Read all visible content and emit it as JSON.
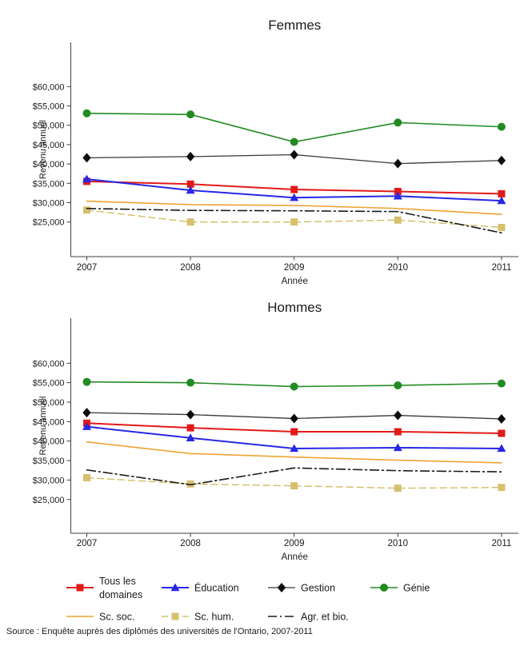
{
  "source_note": "Source : Enquête auprès des diplômés des universités de l'Ontario, 2007-2011",
  "chart_data": [
    {
      "type": "line",
      "title": "Femmes",
      "xlabel": "Année",
      "ylabel": "Revenu annuel",
      "x": [
        2007,
        2008,
        2009,
        2010,
        2011
      ],
      "ylim": [
        16000,
        71400
      ],
      "grid": false,
      "legend_position": "below-both-charts",
      "yticks": [
        25000,
        30000,
        35000,
        40000,
        45000,
        50000,
        55000,
        60000
      ],
      "ytick_labels": [
        "$25,000",
        "$30,000",
        "$35,000",
        "$40,000",
        "$45,000",
        "$50,000",
        "$55,000",
        "$60,000"
      ],
      "series": [
        {
          "name": "Tous les domaines",
          "color": "#e31a1a",
          "marker": "square",
          "dash": null,
          "width": 2,
          "values": [
            35500,
            34800,
            33400,
            32900,
            32300
          ]
        },
        {
          "name": "Éducation",
          "color": "#2727e6",
          "marker": "triangle",
          "dash": null,
          "width": 2,
          "values": [
            36100,
            33200,
            31300,
            31700,
            30500
          ]
        },
        {
          "name": "Gestion",
          "color": "#383838",
          "marker_color": "#0d0d0d",
          "marker": "diamond",
          "dash": null,
          "width": 1.3,
          "values": [
            41600,
            41900,
            42400,
            40100,
            40900
          ]
        },
        {
          "name": "Génie",
          "color": "#228b22",
          "marker": "circle",
          "dash": null,
          "width": 1.6,
          "values": [
            53100,
            52800,
            45700,
            50700,
            49600
          ]
        },
        {
          "name": "Sc. soc.",
          "color": "#f0a335",
          "marker": "none",
          "dash": null,
          "width": 1.6,
          "values": [
            30400,
            29500,
            29300,
            28500,
            27000
          ]
        },
        {
          "name": "Sc. hum.",
          "color": "#d6c06e",
          "marker": "square",
          "dash": "8,5",
          "width": 1.5,
          "values": [
            28100,
            25000,
            25000,
            25500,
            23600
          ]
        },
        {
          "name": "Agr. et bio.",
          "color": "#1a1a1a",
          "marker": "none",
          "dash": "11,4,2,4",
          "width": 1.6,
          "values": [
            28500,
            28000,
            27900,
            27700,
            22200
          ]
        }
      ]
    },
    {
      "type": "line",
      "title": "Hommes",
      "xlabel": "Année",
      "ylabel": "Revenu annuel",
      "x": [
        2007,
        2008,
        2009,
        2010,
        2011
      ],
      "ylim": [
        16300,
        71200
      ],
      "grid": false,
      "yticks": [
        25000,
        30000,
        35000,
        40000,
        45000,
        50000,
        55000,
        60000
      ],
      "ytick_labels": [
        "$25,000",
        "$30,000",
        "$35,000",
        "$40,000",
        "$45,000",
        "$50,000",
        "$55,000",
        "$60,000"
      ],
      "series": [
        {
          "name": "Tous les domaines",
          "color": "#e31a1a",
          "marker": "square",
          "dash": null,
          "width": 2,
          "values": [
            44600,
            43400,
            42400,
            42400,
            42000
          ]
        },
        {
          "name": "Éducation",
          "color": "#2727e6",
          "marker": "triangle",
          "dash": null,
          "width": 2,
          "values": [
            43700,
            40800,
            38100,
            38300,
            38100
          ]
        },
        {
          "name": "Gestion",
          "color": "#383838",
          "marker_color": "#0d0d0d",
          "marker": "diamond",
          "dash": null,
          "width": 1.3,
          "values": [
            47300,
            46800,
            45800,
            46600,
            45700
          ]
        },
        {
          "name": "Génie",
          "color": "#228b22",
          "marker": "circle",
          "dash": null,
          "width": 1.6,
          "values": [
            55200,
            55000,
            54000,
            54300,
            54800
          ]
        },
        {
          "name": "Sc. soc.",
          "color": "#f0a335",
          "marker": "none",
          "dash": null,
          "width": 1.6,
          "values": [
            39800,
            36800,
            35900,
            35100,
            34400
          ]
        },
        {
          "name": "Sc. hum.",
          "color": "#d6c06e",
          "marker": "square",
          "dash": "8,5",
          "width": 1.5,
          "values": [
            30600,
            29000,
            28500,
            27900,
            28100
          ]
        },
        {
          "name": "Agr. et bio.",
          "color": "#1a1a1a",
          "marker": "none",
          "dash": "11,4,2,4",
          "width": 1.6,
          "values": [
            32600,
            28800,
            33100,
            32400,
            32100
          ]
        }
      ]
    }
  ],
  "legend": {
    "rows": [
      [
        "Tous les domaines",
        "Éducation",
        "Gestion",
        "Génie"
      ],
      [
        "Sc. soc.",
        "Sc. hum.",
        "Agr. et bio."
      ]
    ]
  }
}
